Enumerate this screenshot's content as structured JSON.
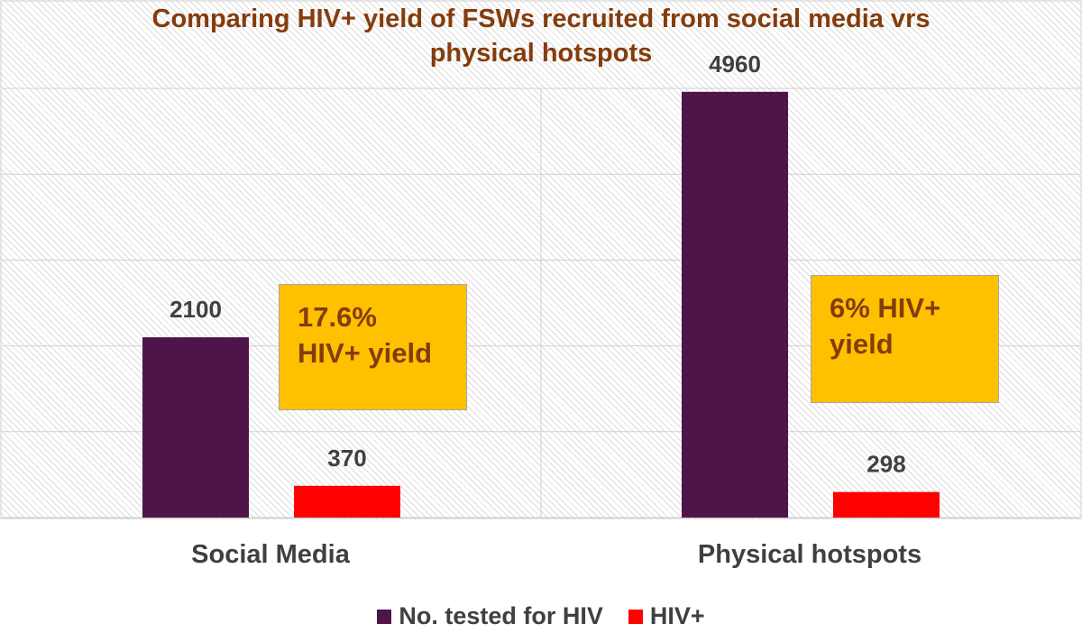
{
  "chart_data": {
    "type": "bar",
    "title_lines": [
      "Comparing HIV+ yield of FSWs recruited from social media vrs",
      "physical hotspots"
    ],
    "categories": [
      "Social Media",
      "Physical hotspots"
    ],
    "series": [
      {
        "name": "No. tested for HIV",
        "values": [
          2100,
          4960
        ],
        "color": "#4f1548"
      },
      {
        "name": "HIV+",
        "values": [
          370,
          298
        ],
        "color": "#ff0000"
      }
    ],
    "ylim": [
      0,
      5000
    ],
    "grid": true,
    "legend_position": "bottom",
    "annotations": [
      {
        "category": "Social Media",
        "lines": [
          "17.6%",
          "HIV+ yield"
        ]
      },
      {
        "category": "Physical hotspots",
        "lines": [
          "6% HIV+",
          "yield"
        ]
      }
    ],
    "annotation_color": "#ffc000",
    "title_color": "#843c0c"
  }
}
